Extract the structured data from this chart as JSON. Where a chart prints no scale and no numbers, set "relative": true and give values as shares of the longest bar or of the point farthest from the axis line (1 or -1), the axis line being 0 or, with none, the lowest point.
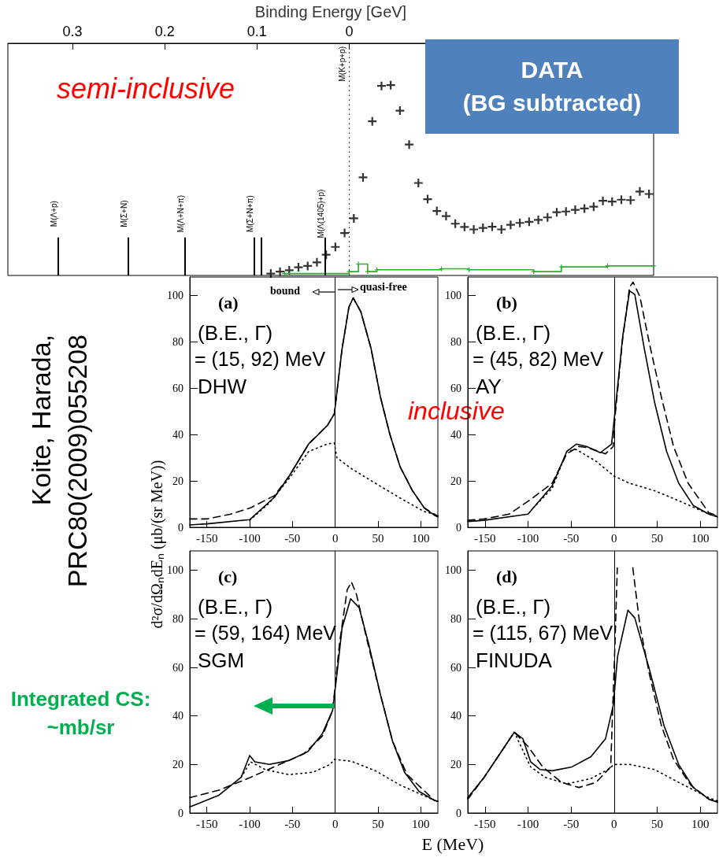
{
  "chart_data": [
    {
      "type": "scatter",
      "relative": true,
      "xlabel": "Binding Energy [GeV]",
      "xlim": [
        0.37,
        -0.33
      ],
      "xticks": [
        0.3,
        0.2,
        0.1,
        0
      ],
      "marker": "cross",
      "series": [
        {
          "type": "scatter",
          "color": "#000000",
          "x": [
            0.085,
            0.075,
            0.065,
            0.055,
            0.045,
            0.035,
            0.025,
            0.015,
            0.005,
            -0.005,
            -0.015,
            -0.025,
            -0.035,
            -0.045,
            -0.055,
            -0.065,
            -0.075,
            -0.085,
            -0.095,
            -0.105,
            -0.115,
            -0.125,
            -0.135,
            -0.145,
            -0.155,
            -0.165,
            -0.175,
            -0.185,
            -0.195,
            -0.205,
            -0.215,
            -0.225,
            -0.235,
            -0.245,
            -0.255,
            -0.265,
            -0.275,
            -0.285,
            -0.295,
            -0.305,
            -0.315,
            -0.325
          ],
          "values": [
            0.01,
            0.02,
            0.027,
            0.043,
            0.05,
            0.069,
            0.109,
            0.15,
            0.223,
            0.3,
            0.515,
            0.81,
            0.996,
            1,
            0.866,
            0.688,
            0.486,
            0.401,
            0.339,
            0.312,
            0.272,
            0.255,
            0.242,
            0.25,
            0.256,
            0.242,
            0.266,
            0.276,
            0.282,
            0.292,
            0.305,
            0.332,
            0.336,
            0.345,
            0.352,
            0.361,
            0.392,
            0.388,
            0.398,
            0.396,
            0.441,
            0.428
          ]
        },
        {
          "type": "step",
          "color": "#33aa33",
          "x": [
            0.07,
            0.0,
            -0.01,
            -0.02,
            -0.03,
            -0.1,
            -0.13,
            -0.2,
            -0.23,
            -0.28,
            -0.33
          ],
          "values": [
            0.01,
            0.02,
            0.06,
            0.02,
            0.03,
            0.035,
            0.03,
            0.02,
            0.045,
            0.05,
            0.05
          ]
        }
      ],
      "ref_lines": [
        {
          "axis": "x",
          "value": 0.316,
          "label": "M(Λ+p)",
          "color": "#000000"
        },
        {
          "axis": "x",
          "value": 0.24,
          "label": "M(Σ+N)",
          "color": "#000000"
        },
        {
          "axis": "x",
          "value": 0.178,
          "label": "M(Λ+N+π)",
          "color": "#000000"
        },
        {
          "axis": "x",
          "value": 0.103,
          "label": "M(Σ+N+π)",
          "color": "#000000"
        },
        {
          "axis": "x",
          "value": 0.095,
          "color": "#000000"
        },
        {
          "axis": "x",
          "value": 0.026,
          "label": "M(Λ(1405)+p)",
          "color": "#000000"
        },
        {
          "axis": "x",
          "value": 0,
          "label": "M(K+p+p)",
          "color": "#000000",
          "line_style": "dotted"
        }
      ],
      "annotations": [
        "semi-inclusive",
        "DATA\n(BG subtracted)"
      ]
    },
    {
      "type": "line",
      "xlim": [
        -170,
        120
      ],
      "ylim": [
        0,
        108
      ],
      "xticks": [
        -150,
        -100,
        -50,
        0,
        50,
        100
      ],
      "yticks": [
        0,
        20,
        40,
        60,
        80,
        100
      ],
      "series": [
        {
          "color": "#000000",
          "line_style": "solid",
          "x": [
            -170,
            -150,
            -100,
            -71,
            -54,
            -31,
            -20,
            -9,
            -1,
            8,
            16,
            21,
            30,
            42,
            53,
            64,
            76,
            90,
            104,
            116,
            120
          ],
          "values": [
            1,
            1.5,
            3.3,
            13,
            22,
            36,
            40,
            44,
            49,
            77,
            95,
            99,
            93,
            77,
            56,
            40,
            26,
            16,
            8.4,
            5.2,
            4.5
          ]
        },
        {
          "color": "#000000",
          "line_style": "dashed",
          "x": [
            -170,
            -150,
            -122,
            -99,
            -71,
            -54,
            -31,
            -20,
            -9,
            -1,
            8,
            16,
            21,
            30,
            42,
            53,
            64,
            76,
            90,
            104,
            116,
            120
          ],
          "values": [
            3.6,
            3.6,
            5.7,
            8.4,
            13.7,
            22,
            36,
            40,
            44,
            49,
            77,
            95,
            99,
            93,
            77,
            56,
            40,
            26,
            16,
            8.4,
            5.5,
            5
          ]
        },
        {
          "color": "#000000",
          "line_style": "dotted",
          "x": [
            -100,
            -77,
            -54,
            -31,
            -9,
            -1,
            2,
            19,
            47,
            76,
            104,
            116,
            120
          ],
          "values": [
            3,
            10.5,
            21,
            32.7,
            36,
            36.4,
            30,
            25.3,
            19,
            12.6,
            6.8,
            5.7,
            5.3
          ]
        }
      ],
      "ref_lines": [
        {
          "axis": "x",
          "value": 0,
          "color": "#000000"
        }
      ],
      "annotations": [
        "(a)",
        "(B.E., Γ)",
        "= (15, 92) MeV",
        "DHW",
        "bound",
        "quasi-free",
        "inclusive",
        "Koite, Harada,\nPRC80(2009)055208"
      ]
    },
    {
      "type": "line",
      "xlim": [
        -170,
        120
      ],
      "ylim": [
        0,
        108
      ],
      "xticks": [
        -150,
        -100,
        -50,
        0,
        50,
        100
      ],
      "yticks": [
        0,
        20,
        40,
        60,
        80,
        100
      ],
      "series": [
        {
          "color": "#000000",
          "line_style": "solid",
          "x": [
            -170,
            -151,
            -100,
            -72,
            -55,
            -44,
            -32,
            -16,
            -3,
            1,
            10,
            18,
            24,
            35,
            47,
            61,
            75,
            92,
            110,
            120
          ],
          "values": [
            2.5,
            3,
            5.7,
            17.9,
            32.7,
            35.9,
            34.9,
            32.2,
            35.9,
            49.7,
            82.5,
            102,
            100.5,
            77.2,
            53.9,
            32.7,
            19,
            9.4,
            5.7,
            4.5
          ]
        },
        {
          "color": "#000000",
          "line_style": "dashed",
          "x": [
            -170,
            -151,
            -122,
            -97,
            -72,
            -55,
            -41,
            -30,
            -10,
            -1,
            1,
            10,
            18,
            22,
            30,
            41,
            55,
            69,
            86,
            110,
            120
          ],
          "values": [
            3,
            3.6,
            5.7,
            12,
            19,
            31.7,
            34.9,
            34.3,
            31.7,
            34.9,
            47.6,
            81.5,
            103.7,
            105.8,
            99.5,
            79.3,
            56,
            34.9,
            19,
            6.3,
            5
          ]
        },
        {
          "color": "#000000",
          "line_style": "dotted",
          "x": [
            -94,
            -72,
            -55,
            -44,
            -21,
            0,
            18,
            47,
            75,
            110,
            120
          ],
          "values": [
            8.4,
            16.8,
            32.7,
            33.6,
            28.5,
            22.1,
            19,
            15.8,
            11.5,
            5.7,
            4.8
          ]
        }
      ],
      "ref_lines": [
        {
          "axis": "x",
          "value": 0,
          "color": "#000000"
        }
      ],
      "annotations": [
        "(b)",
        "(B.E., Γ)",
        "= (45, 82) MeV",
        "AY"
      ]
    },
    {
      "type": "line",
      "xlabel": "E (MeV)",
      "ylabel": "d²σ/dΩₙdEₙ (μb/(sr MeV))",
      "xlim": [
        -170,
        120
      ],
      "ylim": [
        0,
        108
      ],
      "xticks": [
        -150,
        -100,
        -50,
        0,
        50,
        100
      ],
      "yticks": [
        0,
        20,
        40,
        60,
        80,
        100
      ],
      "series": [
        {
          "color": "#000000",
          "line_style": "solid",
          "x": [
            -170,
            -136,
            -110,
            -100,
            -94,
            -77,
            -54,
            -32,
            -15,
            -3,
            2,
            8,
            18,
            28,
            39,
            53,
            67,
            81,
            98,
            116,
            120
          ],
          "values": [
            2.5,
            7.3,
            14.7,
            23.7,
            21.1,
            20,
            21.6,
            25.3,
            32.7,
            42.3,
            57.1,
            76.2,
            88.3,
            84.6,
            69.8,
            48.6,
            29.6,
            16.8,
            8.9,
            5.2,
            4.8
          ]
        },
        {
          "color": "#000000",
          "line_style": "dashed",
          "x": [
            -170,
            -136,
            -99,
            -65,
            -37,
            -15,
            -3,
            5,
            14,
            19,
            25,
            36,
            53,
            67,
            84,
            116,
            120
          ],
          "values": [
            6.3,
            9.4,
            14.7,
            20,
            24.3,
            31.7,
            42.3,
            69.8,
            92,
            95.2,
            89.9,
            73,
            48.6,
            29.6,
            15.8,
            5.2,
            4.8
          ]
        },
        {
          "color": "#000000",
          "line_style": "dotted",
          "x": [
            -110,
            -99,
            -82,
            -54,
            -26,
            -6,
            -1,
            19,
            47,
            76,
            116,
            120
          ],
          "values": [
            14.7,
            21.1,
            17.9,
            15.8,
            16.8,
            20,
            22.1,
            21.3,
            17.4,
            11.5,
            5.2,
            4.8
          ]
        }
      ],
      "ref_lines": [
        {
          "axis": "x",
          "value": 0,
          "color": "#000000"
        }
      ],
      "annotations": [
        "(c)",
        "(B.E., Γ)",
        "= (59, 164) MeV",
        "SGM",
        "Integrated CS:\n~mb/sr"
      ]
    },
    {
      "type": "line",
      "xlim": [
        -170,
        120
      ],
      "ylim": [
        0,
        108
      ],
      "xticks": [
        -150,
        -100,
        -50,
        0,
        50,
        100
      ],
      "yticks": [
        0,
        20,
        40,
        60,
        80,
        100
      ],
      "series": [
        {
          "color": "#000000",
          "line_style": "solid",
          "x": [
            -170,
            -151,
            -131,
            -116,
            -106,
            -97,
            -86,
            -72,
            -49,
            -27,
            -10,
            -1,
            4,
            16,
            24,
            41,
            58,
            75,
            92,
            110,
            120
          ],
          "values": [
            6.3,
            14.7,
            25.3,
            33.3,
            30.6,
            21.1,
            17.9,
            17.4,
            19,
            23.2,
            30.6,
            44.4,
            64.5,
            83.6,
            80.4,
            59.2,
            35.9,
            20,
            10.5,
            5.7,
            4.5
          ]
        },
        {
          "color": "#000000",
          "line_style": "dashed",
          "x": [
            -170,
            -151,
            -131,
            -116,
            -100,
            -83,
            -61,
            -41,
            -21,
            -4,
            1,
            3.7,
            12,
            21.7,
            30,
            41,
            55,
            69,
            89,
            110,
            120
          ],
          "values": [
            5.7,
            14.7,
            25.3,
            33.3,
            27.4,
            19,
            12.6,
            10.5,
            12.6,
            19,
            69.8,
            101,
            null,
            101,
            77.2,
            57.1,
            35.9,
            22.1,
            11.5,
            5.7,
            4.5
          ]
        },
        {
          "color": "#000000",
          "line_style": "dotted",
          "x": [
            -170,
            -151,
            -131,
            -116,
            -97,
            -80,
            -55,
            -27,
            -7,
            0,
            18,
            47,
            75,
            110,
            120
          ],
          "values": [
            6.3,
            14.7,
            25.3,
            33.3,
            19,
            14.7,
            12,
            14.2,
            17.9,
            20,
            20,
            17.9,
            12.6,
            6.3,
            5
          ]
        }
      ],
      "ref_lines": [
        {
          "axis": "x",
          "value": 0,
          "color": "#000000"
        }
      ],
      "annotations": [
        "(d)",
        "(B.E., Γ)",
        "= (115, 67) MeV",
        "FINUDA"
      ]
    }
  ]
}
